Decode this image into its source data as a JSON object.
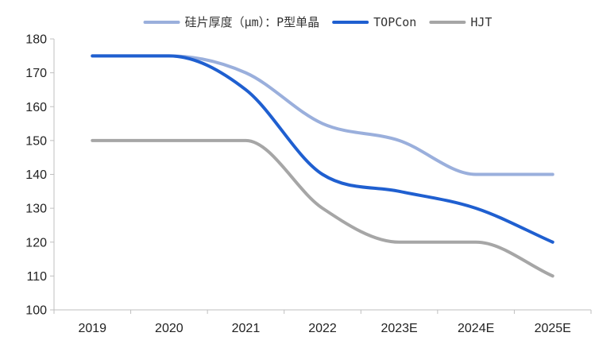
{
  "chart_data": {
    "type": "line",
    "title": "",
    "xlabel": "",
    "ylabel": "",
    "categories": [
      "2019",
      "2020",
      "2021",
      "2022",
      "2023E",
      "2024E",
      "2025E"
    ],
    "ylim": [
      100,
      180
    ],
    "yticks": [
      100,
      110,
      120,
      130,
      140,
      150,
      160,
      170,
      180
    ],
    "grid": false,
    "legend_position": "top",
    "series": [
      {
        "name": "硅片厚度（μm）：P型单晶",
        "color": "#9aafdc",
        "values": [
          175,
          175,
          170,
          155,
          150,
          140,
          140
        ]
      },
      {
        "name": "TOPCon",
        "color": "#1f5fd0",
        "values": [
          175,
          175,
          165,
          140,
          135,
          130,
          120
        ]
      },
      {
        "name": "HJT",
        "color": "#a6a6a6",
        "values": [
          150,
          150,
          150,
          130,
          120,
          120,
          110
        ]
      }
    ]
  }
}
